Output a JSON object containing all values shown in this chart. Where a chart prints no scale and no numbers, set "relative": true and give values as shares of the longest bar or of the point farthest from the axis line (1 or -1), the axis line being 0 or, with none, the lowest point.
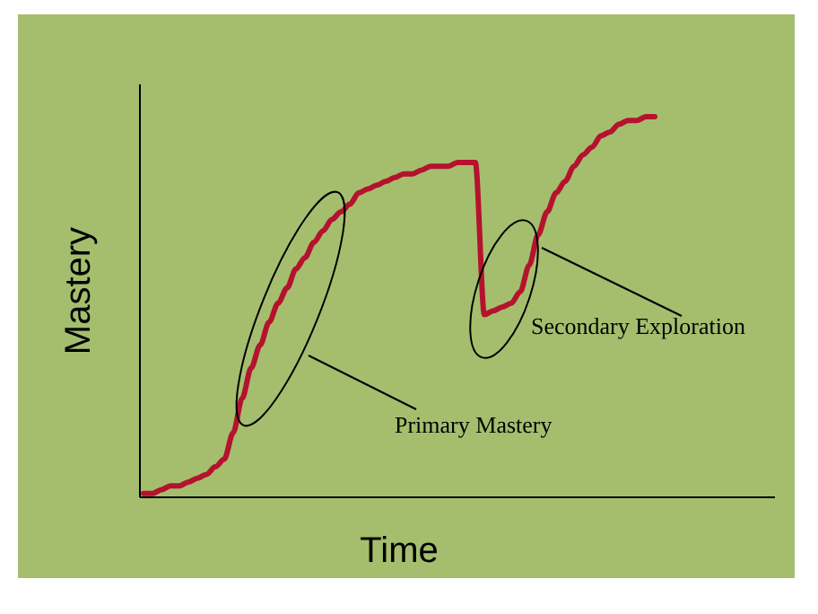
{
  "chart_data": {
    "type": "line",
    "relative": true,
    "xlabel": "Time",
    "ylabel": "Mastery",
    "categories": [
      null,
      null,
      null,
      null,
      null,
      null,
      null,
      null,
      null,
      null,
      null,
      null,
      null,
      null,
      null,
      null,
      null,
      null,
      null,
      null,
      null,
      null,
      null,
      null,
      null,
      null,
      null,
      null,
      null,
      null,
      null,
      null,
      null,
      null,
      null,
      null,
      null,
      null,
      null,
      null,
      null,
      null,
      null,
      null,
      null,
      null,
      null,
      null,
      null,
      null,
      null,
      null,
      null,
      null,
      null,
      null,
      null,
      null
    ],
    "series": [
      {
        "color": "#b5122e",
        "values": [
          0.01,
          0.01,
          0.02,
          0.03,
          0.03,
          0.04,
          0.05,
          0.06,
          0.08,
          0.1,
          0.17,
          0.26,
          0.34,
          0.4,
          0.46,
          0.51,
          0.55,
          0.6,
          0.63,
          0.67,
          0.7,
          0.73,
          0.75,
          0.77,
          0.8,
          0.81,
          0.82,
          0.83,
          0.84,
          0.85,
          0.85,
          0.86,
          0.87,
          0.87,
          0.87,
          0.88,
          0.88,
          0.88,
          0.48,
          0.49,
          0.5,
          0.51,
          0.54,
          0.61,
          0.69,
          0.75,
          0.8,
          0.83,
          0.87,
          0.9,
          0.92,
          0.95,
          0.96,
          0.98,
          0.99,
          0.99,
          1.0,
          1.0
        ]
      }
    ],
    "annotations": [
      "Primary Mastery",
      "Secondary Exploration"
    ],
    "grid": false,
    "line_style": "solid"
  }
}
